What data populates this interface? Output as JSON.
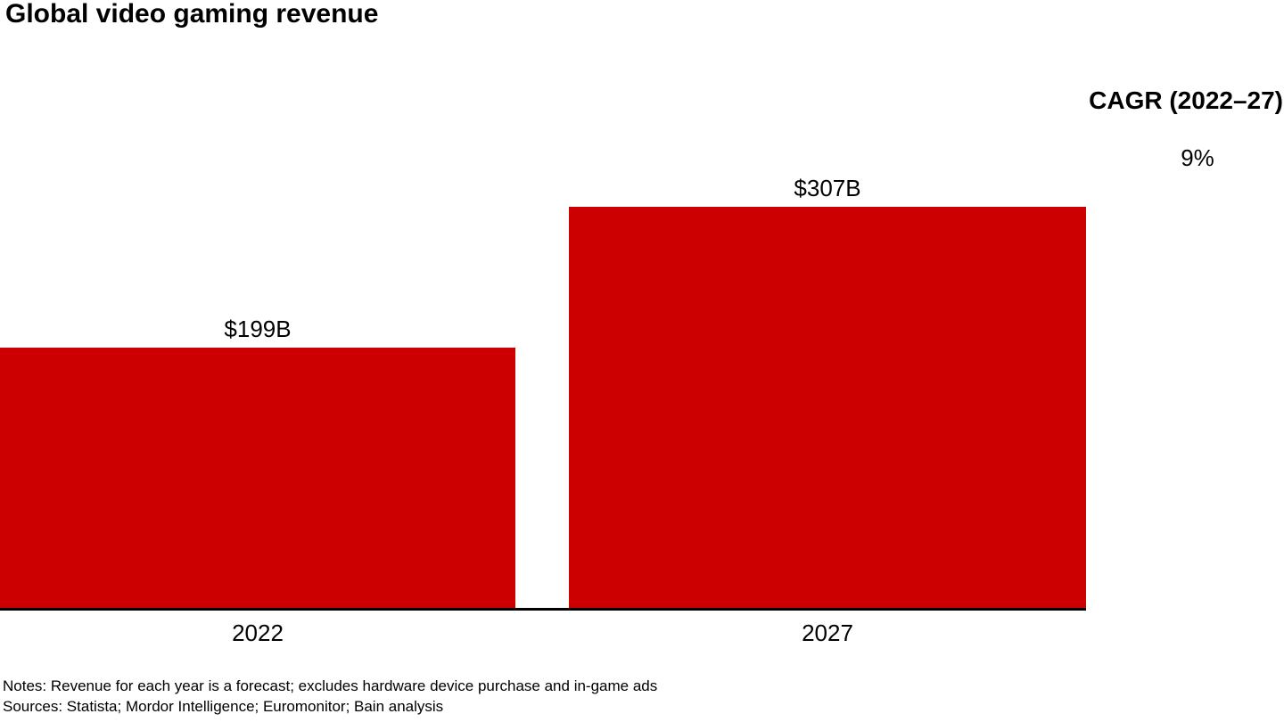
{
  "title": "Global video gaming revenue",
  "cagr": {
    "header": "CAGR (2022–27)",
    "value": "9%"
  },
  "chart_data": {
    "type": "bar",
    "title": "Global video gaming revenue",
    "categories": [
      "2022",
      "2027"
    ],
    "values": [
      199,
      307
    ],
    "value_labels": [
      "$199B",
      "$307B"
    ],
    "xlabel": "",
    "ylabel": "",
    "ylim": [
      0,
      307
    ],
    "grid": false,
    "legend": "none",
    "bar_color": "#cc0000",
    "axis_line_color": "#000000",
    "annotation_header": "CAGR (2022–27)",
    "annotation_value": "9%"
  },
  "footer": {
    "notes": "Notes: Revenue for each year is a forecast; excludes hardware device purchase and in-game ads",
    "sources": "Sources: Statista; Mordor Intelligence; Euromonitor; Bain analysis"
  }
}
